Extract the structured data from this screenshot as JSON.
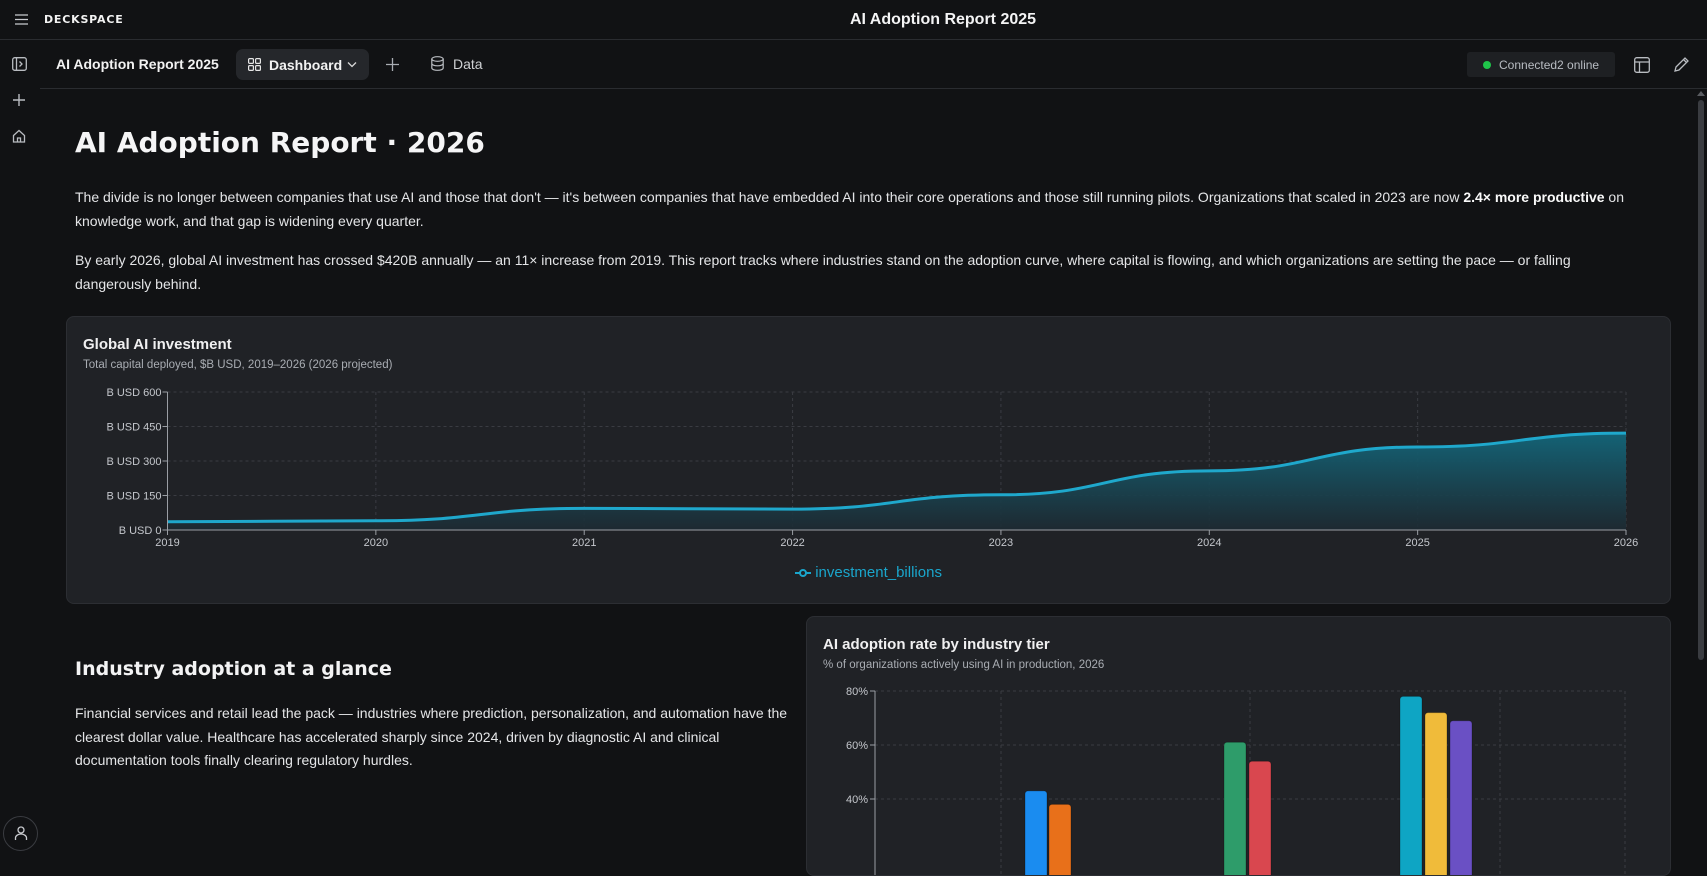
{
  "topbar": {
    "brand": "DECKSPACE",
    "title": "AI Adoption Report 2025",
    "menu_icon": "hamburger-icon"
  },
  "rail": {
    "icons": [
      "sidebar-toggle-icon",
      "plus-icon",
      "home-icon",
      "user-icon"
    ]
  },
  "subbar": {
    "doc_name": "AI Adoption Report 2025",
    "tabs": [
      {
        "label": "Dashboard",
        "icon": "grid-icon",
        "active": true
      },
      {
        "label": "Data",
        "icon": "database-icon",
        "active": false
      }
    ],
    "status": {
      "label": "Connected2 online",
      "color": "#1fc44a"
    }
  },
  "content": {
    "title": "AI Adoption Report · 2026",
    "intro_p1_a": "The divide is no longer between companies that use AI and those that don't — it's between companies that have embedded AI into their core operations and those still running pilots. Organizations that scaled in 2023 are now ",
    "intro_p1_bold": "2.4× more productive",
    "intro_p1_b": " on knowledge work, and that gap is widening every quarter.",
    "intro_p2": "By early 2026, global AI investment has crossed $420B annually — an 11× increase from 2019. This report tracks where industries stand on the adoption curve, where capital is flowing, and which organizations are setting the pace — or falling dangerously behind.",
    "section_title": "Industry adoption at a glance",
    "section_para": "Financial services and retail lead the pack — industries where prediction, personalization, and automation have the clearest dollar value. Healthcare has accelerated sharply since 2024, driven by diagnostic AI and clinical documentation tools finally clearing regulatory hurdles."
  },
  "chart_data": [
    {
      "type": "area",
      "title": "Global AI investment",
      "subtitle": "Total capital deployed, $B USD, 2019–2026 (2026 projected)",
      "x": [
        "2019",
        "2020",
        "2021",
        "2022",
        "2023",
        "2024",
        "2025",
        "2026"
      ],
      "y_ticks": [
        "B USD 0",
        "B USD 150",
        "B USD 300",
        "B USD 450",
        "B USD 600"
      ],
      "ylim": [
        0,
        600
      ],
      "series": [
        {
          "name": "investment_billions",
          "values": [
            36,
            40,
            94,
            91,
            153,
            257,
            361,
            421
          ],
          "color": "#1fa8cc"
        }
      ],
      "legend": "bottom",
      "grid": true
    },
    {
      "type": "bar",
      "title": "AI adoption rate by industry tier",
      "subtitle": "% of organizations actively using AI in production, 2026",
      "y_ticks": [
        "40%",
        "60%",
        "80%"
      ],
      "ylim": [
        0,
        80
      ],
      "grid": true,
      "bars": [
        {
          "value": 43,
          "color": "#1a8cf0"
        },
        {
          "value": 38,
          "color": "#e8701a"
        },
        {
          "value": 61,
          "color": "#2e9c6a"
        },
        {
          "value": 54,
          "color": "#d9474f"
        },
        {
          "value": 78,
          "color": "#0ea5c4"
        },
        {
          "value": 72,
          "color": "#f0bb3a"
        },
        {
          "value": 69,
          "color": "#6a50c4"
        }
      ]
    }
  ]
}
